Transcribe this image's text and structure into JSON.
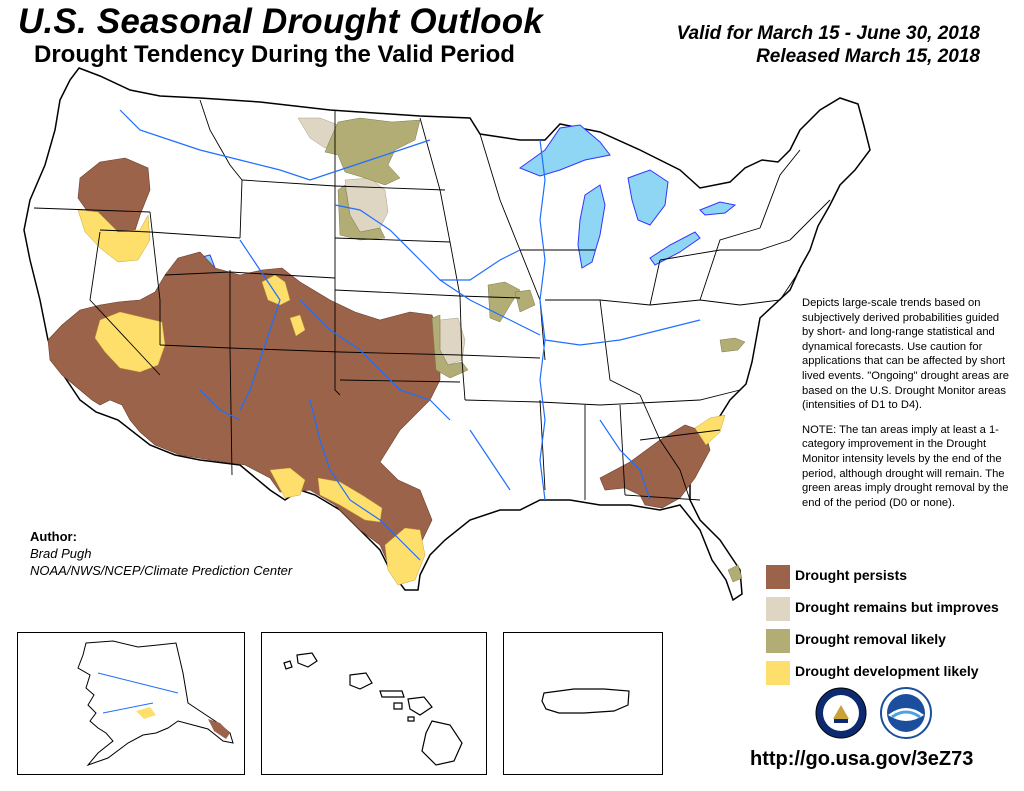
{
  "header": {
    "title": "U.S. Seasonal Drought Outlook",
    "subtitle": "Drought Tendency During the Valid Period",
    "valid_line": "Valid for March 15 - June 30, 2018",
    "released_line": "Released March 15, 2018"
  },
  "description": {
    "paragraph_1": "Depicts large-scale trends based on subjectively derived probabilities guided by short- and long-range statistical and dynamical forecasts. Use caution for applications that can be affected by short lived events. \"Ongoing\" drought areas are based on the U.S. Drought Monitor areas (intensities of D1 to D4).",
    "paragraph_2": "NOTE: The tan areas imply at least a 1-category improvement in the Drought Monitor intensity levels by the end of the period, although drought will remain. The green areas imply drought removal by the end of the period (D0 or none)."
  },
  "author": {
    "label": "Author:",
    "name": "Brad Pugh",
    "organization": "NOAA/NWS/NCEP/Climate Prediction Center"
  },
  "legend": {
    "items": [
      {
        "label": "Drought persists",
        "color": "#9b6349"
      },
      {
        "label": "Drought remains but improves",
        "color": "#ded5c3"
      },
      {
        "label": "Drought removal likely",
        "color": "#b1ad74"
      },
      {
        "label": "Drought development likely",
        "color": "#ffdf6b"
      }
    ]
  },
  "footer": {
    "url": "http://go.usa.gov/3eZ73"
  },
  "colors": {
    "persists": "#9b6349",
    "improves": "#ded5c3",
    "removal": "#b1ad74",
    "development": "#ffdf6b",
    "water": "#8ed6f4",
    "rivers": "#1f6fff"
  },
  "insets": [
    "Alaska",
    "Hawaii",
    "Puerto Rico"
  ]
}
